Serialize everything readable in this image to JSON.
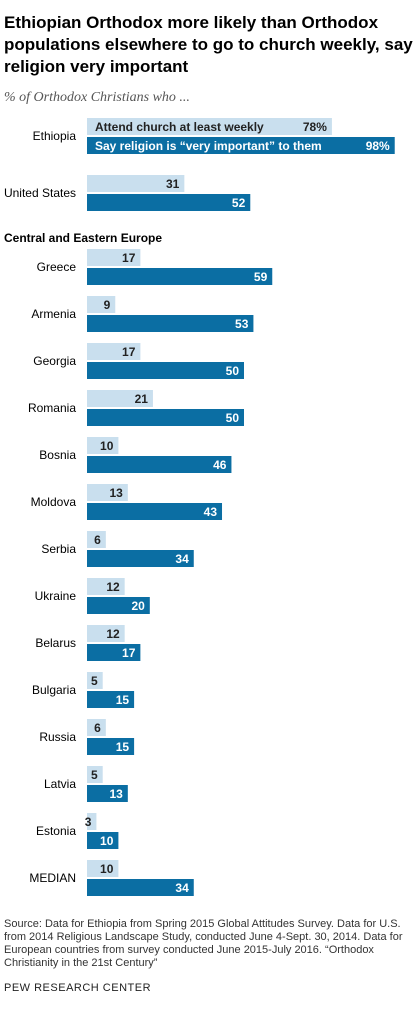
{
  "header": {
    "title": "Ethiopian Orthodox more likely than Orthodox populations elsewhere to go to church weekly, say religion very important",
    "subtitle": "% of Orthodox Christians who ..."
  },
  "footer": {
    "source": "Source: Data for Ethiopia from Spring 2015 Global Attitudes Survey. Data for U.S. from 2014 Religious Landscape Study, conducted June 4-Sept. 30, 2014. Data for European countries from survey conducted June 2015-July 2016. “Orthodox Christianity in the 21st Century”",
    "credit": "PEW RESEARCH CENTER"
  },
  "colors": {
    "light": "#c9dfee",
    "dark": "#0b6ea3",
    "text_dark": "#222222",
    "text_light": "#ffffff"
  },
  "chart_data": {
    "type": "bar",
    "orientation": "horizontal",
    "grouped": true,
    "xlim": [
      0,
      100
    ],
    "series": [
      {
        "name": "Attend church at least weekly",
        "color": "#c9dfee"
      },
      {
        "name": "Say religion is “very important” to them",
        "color": "#0b6ea3"
      }
    ],
    "section_label": "Central and Eastern Europe",
    "section_before_index": 2,
    "categories": [
      "Ethiopia",
      "United States",
      "Greece",
      "Armenia",
      "Georgia",
      "Romania",
      "Bosnia",
      "Moldova",
      "Serbia",
      "Ukraine",
      "Belarus",
      "Bulgaria",
      "Russia",
      "Latvia",
      "Estonia",
      "MEDIAN"
    ],
    "weekly": [
      78,
      31,
      17,
      9,
      17,
      21,
      10,
      13,
      6,
      12,
      12,
      5,
      6,
      5,
      3,
      10
    ],
    "very_important": [
      98,
      52,
      59,
      53,
      50,
      50,
      46,
      43,
      34,
      20,
      17,
      15,
      15,
      13,
      10,
      34
    ],
    "first_row_value_suffix": "%"
  }
}
